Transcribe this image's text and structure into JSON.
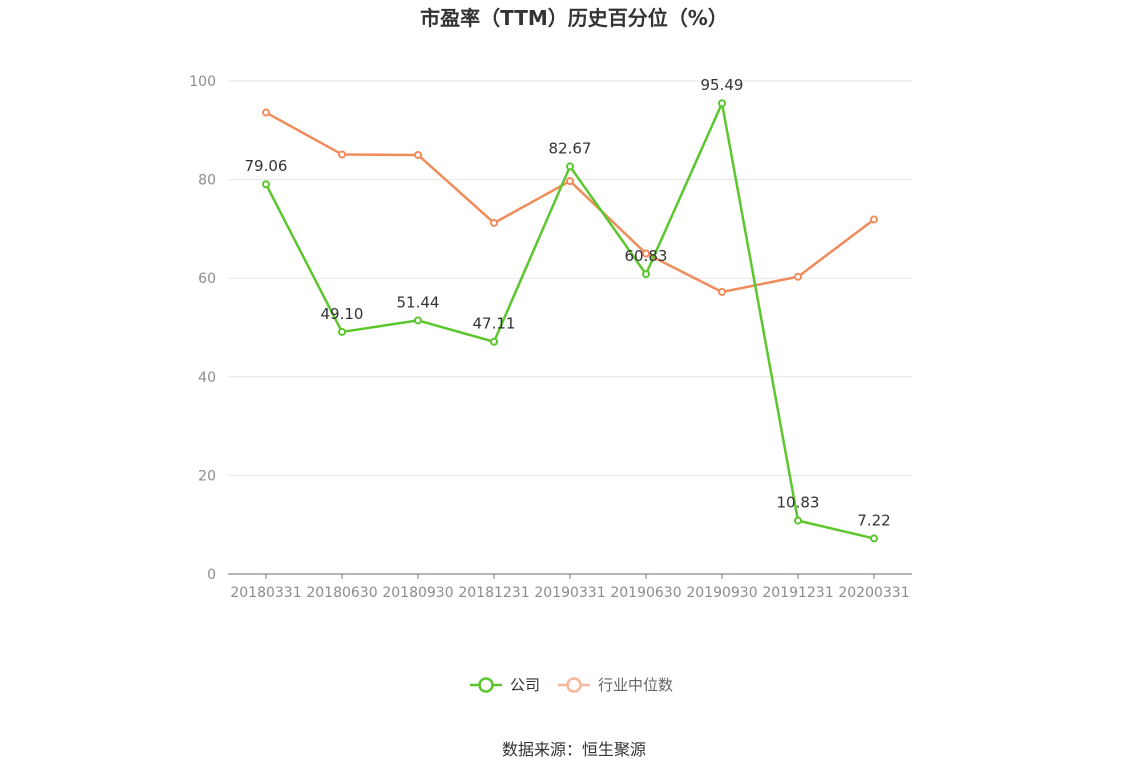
{
  "chart_data": {
    "type": "line",
    "title": "市盈率（TTM）历史百分位（%）",
    "xlabel": "",
    "ylabel": "",
    "categories": [
      "20180331",
      "20180630",
      "20180930",
      "20181231",
      "20190331",
      "20190630",
      "20190930",
      "20191231",
      "20200331"
    ],
    "ylim": [
      0,
      100
    ],
    "yticks": [
      0,
      20,
      40,
      60,
      80,
      100
    ],
    "grid": true,
    "legend_position": "bottom",
    "series": [
      {
        "name": "公司",
        "color": "#5cc62e",
        "values": [
          79.06,
          49.1,
          51.44,
          47.11,
          82.67,
          60.83,
          95.49,
          10.83,
          7.22
        ],
        "labels": [
          "79.06",
          "49.10",
          "51.44",
          "47.11",
          "82.67",
          "60.83",
          "95.49",
          "10.83",
          "7.22"
        ]
      },
      {
        "name": "行业中位数",
        "color": "#f08c5a",
        "values": [
          93.6,
          85.1,
          85.0,
          71.2,
          79.7,
          65.0,
          57.2,
          60.3,
          71.9
        ]
      }
    ]
  },
  "source_text": "数据来源：恒生聚源"
}
